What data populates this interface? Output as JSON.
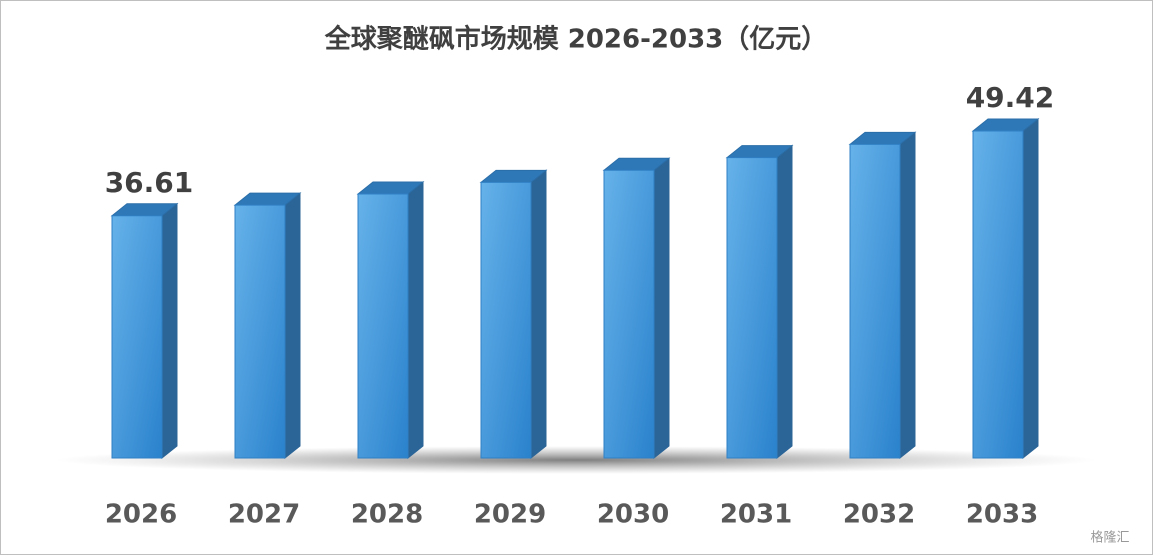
{
  "chart_data": {
    "type": "bar3d",
    "title": "全球聚醚砜市场规模 2026-2033（亿元）",
    "categories": [
      "2026",
      "2027",
      "2028",
      "2029",
      "2030",
      "2031",
      "2032",
      "2033"
    ],
    "values": [
      36.61,
      38.22,
      39.9,
      41.66,
      43.49,
      45.4,
      47.4,
      49.42
    ],
    "value_labels": [
      "36.61",
      null,
      null,
      null,
      null,
      null,
      null,
      "49.42"
    ],
    "color": "#3d96dc",
    "watermark": "格隆汇"
  }
}
